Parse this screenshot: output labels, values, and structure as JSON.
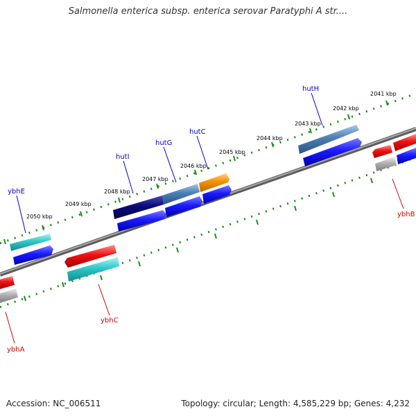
{
  "title": "Salmonella enterica subsp. enterica serovar Paratyphi A str....",
  "footer": {
    "accession": "Accession: NC_006511",
    "stats": "Topology: circular; Length: 4,585,229 bp; Genes: 4,232"
  },
  "colors": {
    "backbone": "#808080",
    "ticks": "#1a8a1a",
    "forward_label": "#0000cc",
    "reverse_label": "#cc0000",
    "gene_cyan": "#2ec8c8",
    "gene_blue": "#1a1aff",
    "gene_navy": "#0a0a7a",
    "gene_steel": "#4a7fb5",
    "gene_orange": "#f59000",
    "gene_red": "#ee1111",
    "gene_gray": "#b0b0b0"
  },
  "map": {
    "kbp_labels": [
      "2041 kbp",
      "2042 kbp",
      "2043 kbp",
      "2044 kbp",
      "2045 kbp",
      "2046 kbp",
      "2047 kbp",
      "2048 kbp",
      "2049 kbp",
      "2050 kbp"
    ],
    "forward_genes": [
      "ybhE",
      "hutI",
      "hutG",
      "hutC",
      "hutH"
    ],
    "reverse_genes": [
      "ybhA",
      "ybhC",
      "ybhB"
    ]
  }
}
